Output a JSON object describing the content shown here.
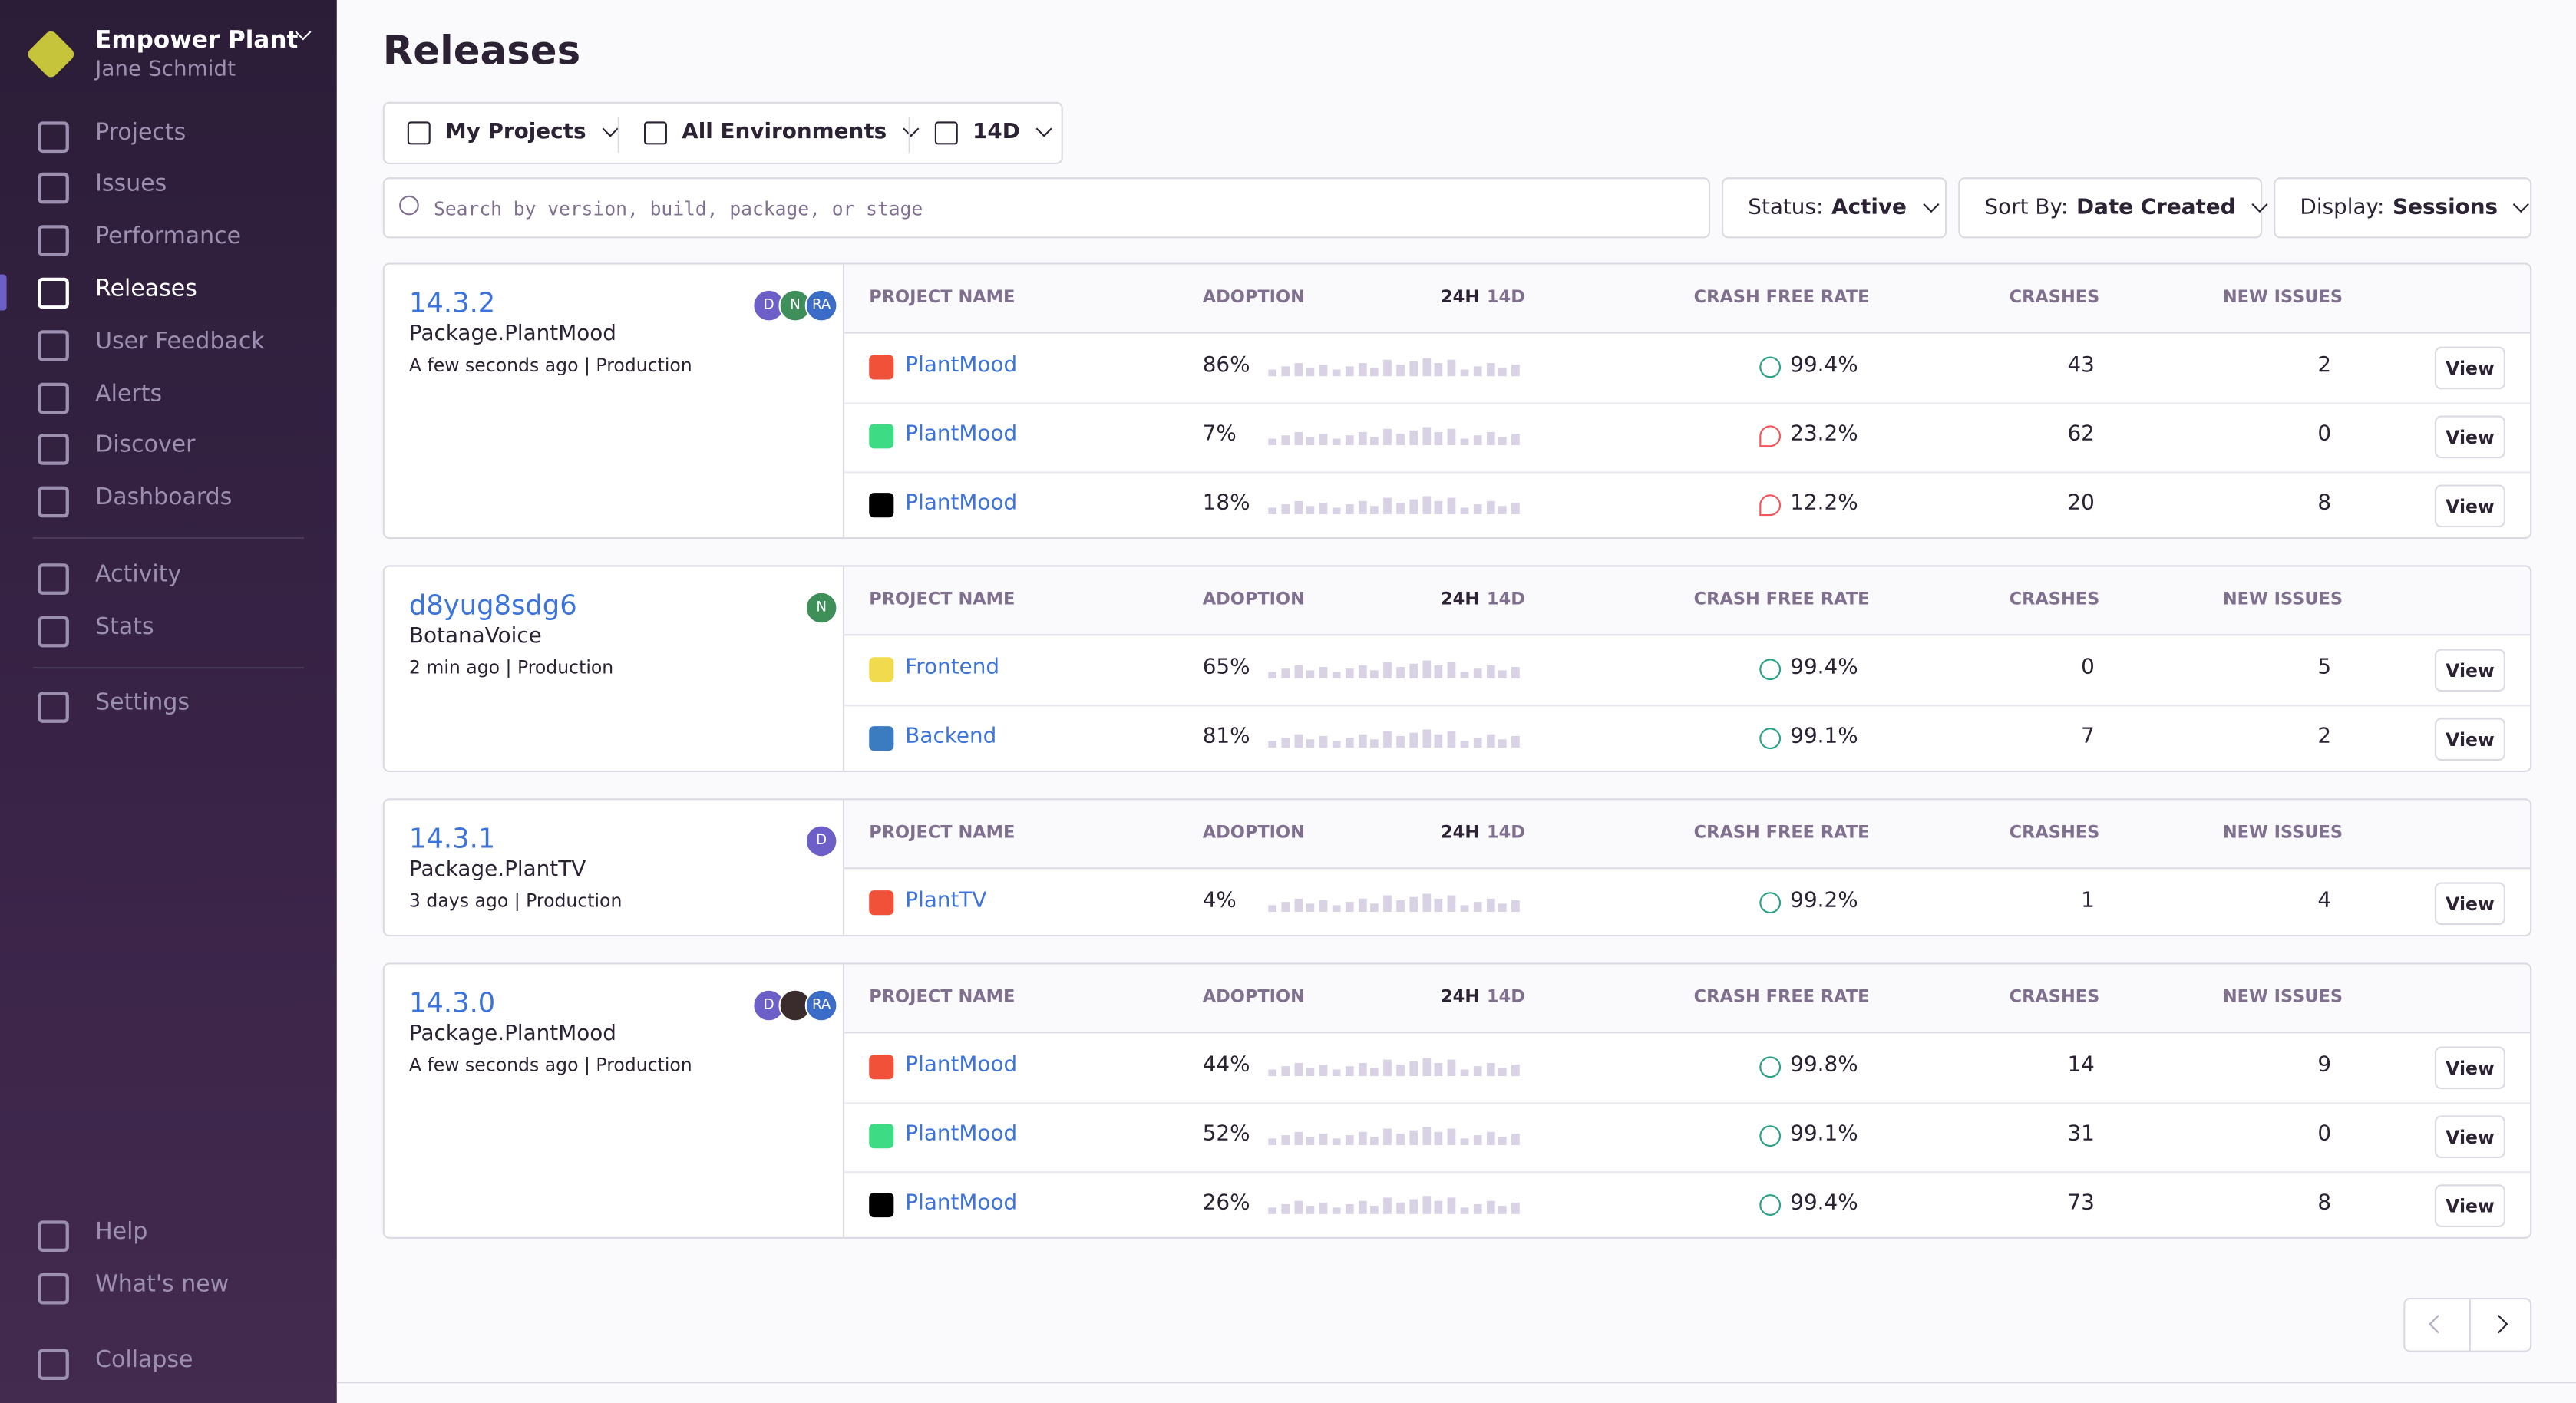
{
  "sidebar": {
    "org": "Empower Plant",
    "user": "Jane Schmidt",
    "nav": [
      "Projects",
      "Issues",
      "Performance",
      "Releases",
      "User Feedback",
      "Alerts",
      "Discover",
      "Dashboards"
    ],
    "nav2": [
      "Activity",
      "Stats"
    ],
    "settings": "Settings",
    "footer": [
      "Help",
      "What's new",
      "Collapse"
    ],
    "active": "Releases"
  },
  "header": {
    "title": "Releases"
  },
  "filters": {
    "projects": "My Projects",
    "environments": "All Environments",
    "period": "14D"
  },
  "search": {
    "placeholder": "Search by version, build, package, or stage"
  },
  "controls": [
    {
      "label": "Status:",
      "value": "Active"
    },
    {
      "label": "Sort By:",
      "value": "Date Created"
    },
    {
      "label": "Display:",
      "value": "Sessions"
    }
  ],
  "columns": {
    "project": "PROJECT NAME",
    "adoption": "ADOPTION",
    "h24": "24H",
    "d14": "14D",
    "crash_free": "CRASH FREE RATE",
    "crashes": "CRASHES",
    "new_issues": "NEW ISSUES"
  },
  "releases": [
    {
      "version": "14.3.2",
      "package": "Package.PlantMood",
      "meta": "A few seconds ago | Production",
      "avatars": [
        "D",
        "N",
        "RA"
      ],
      "rows": [
        {
          "platform": "swift",
          "project": "PlantMood",
          "adoption": "86%",
          "crash_free": "99.4%",
          "status": "ok",
          "crashes": "43",
          "new_issues": "2",
          "action": "View"
        },
        {
          "platform": "android",
          "project": "PlantMood",
          "adoption": "7%",
          "crash_free": "23.2%",
          "status": "bad",
          "crashes": "62",
          "new_issues": "0",
          "action": "View"
        },
        {
          "platform": "apple",
          "project": "PlantMood",
          "adoption": "18%",
          "crash_free": "12.2%",
          "status": "bad",
          "crashes": "20",
          "new_issues": "8",
          "action": "View"
        }
      ]
    },
    {
      "version": "d8yug8sdg6",
      "package": "BotanaVoice",
      "meta": "2 min ago | Production",
      "avatars": [
        "N"
      ],
      "rows": [
        {
          "platform": "js",
          "project": "Frontend",
          "adoption": "65%",
          "crash_free": "99.4%",
          "status": "ok",
          "crashes": "0",
          "new_issues": "5",
          "action": "View"
        },
        {
          "platform": "python",
          "project": "Backend",
          "adoption": "81%",
          "crash_free": "99.1%",
          "status": "ok",
          "crashes": "7",
          "new_issues": "2",
          "action": "View"
        }
      ]
    },
    {
      "version": "14.3.1",
      "package": "Package.PlantTV",
      "meta": "3 days ago | Production",
      "avatars": [
        "D"
      ],
      "rows": [
        {
          "platform": "swift",
          "project": "PlantTV",
          "adoption": "4%",
          "crash_free": "99.2%",
          "status": "ok",
          "crashes": "1",
          "new_issues": "4",
          "action": "View"
        }
      ]
    },
    {
      "version": "14.3.0",
      "package": "Package.PlantMood",
      "meta": "A few seconds ago | Production",
      "avatars": [
        "D",
        null,
        "RA"
      ],
      "rows": [
        {
          "platform": "swift",
          "project": "PlantMood",
          "adoption": "44%",
          "crash_free": "99.8%",
          "status": "ok",
          "crashes": "14",
          "new_issues": "9",
          "action": "View"
        },
        {
          "platform": "android",
          "project": "PlantMood",
          "adoption": "52%",
          "crash_free": "99.1%",
          "status": "ok",
          "crashes": "31",
          "new_issues": "0",
          "action": "View"
        },
        {
          "platform": "apple",
          "project": "PlantMood",
          "adoption": "26%",
          "crash_free": "99.4%",
          "status": "ok",
          "crashes": "73",
          "new_issues": "8",
          "action": "View"
        }
      ]
    }
  ]
}
